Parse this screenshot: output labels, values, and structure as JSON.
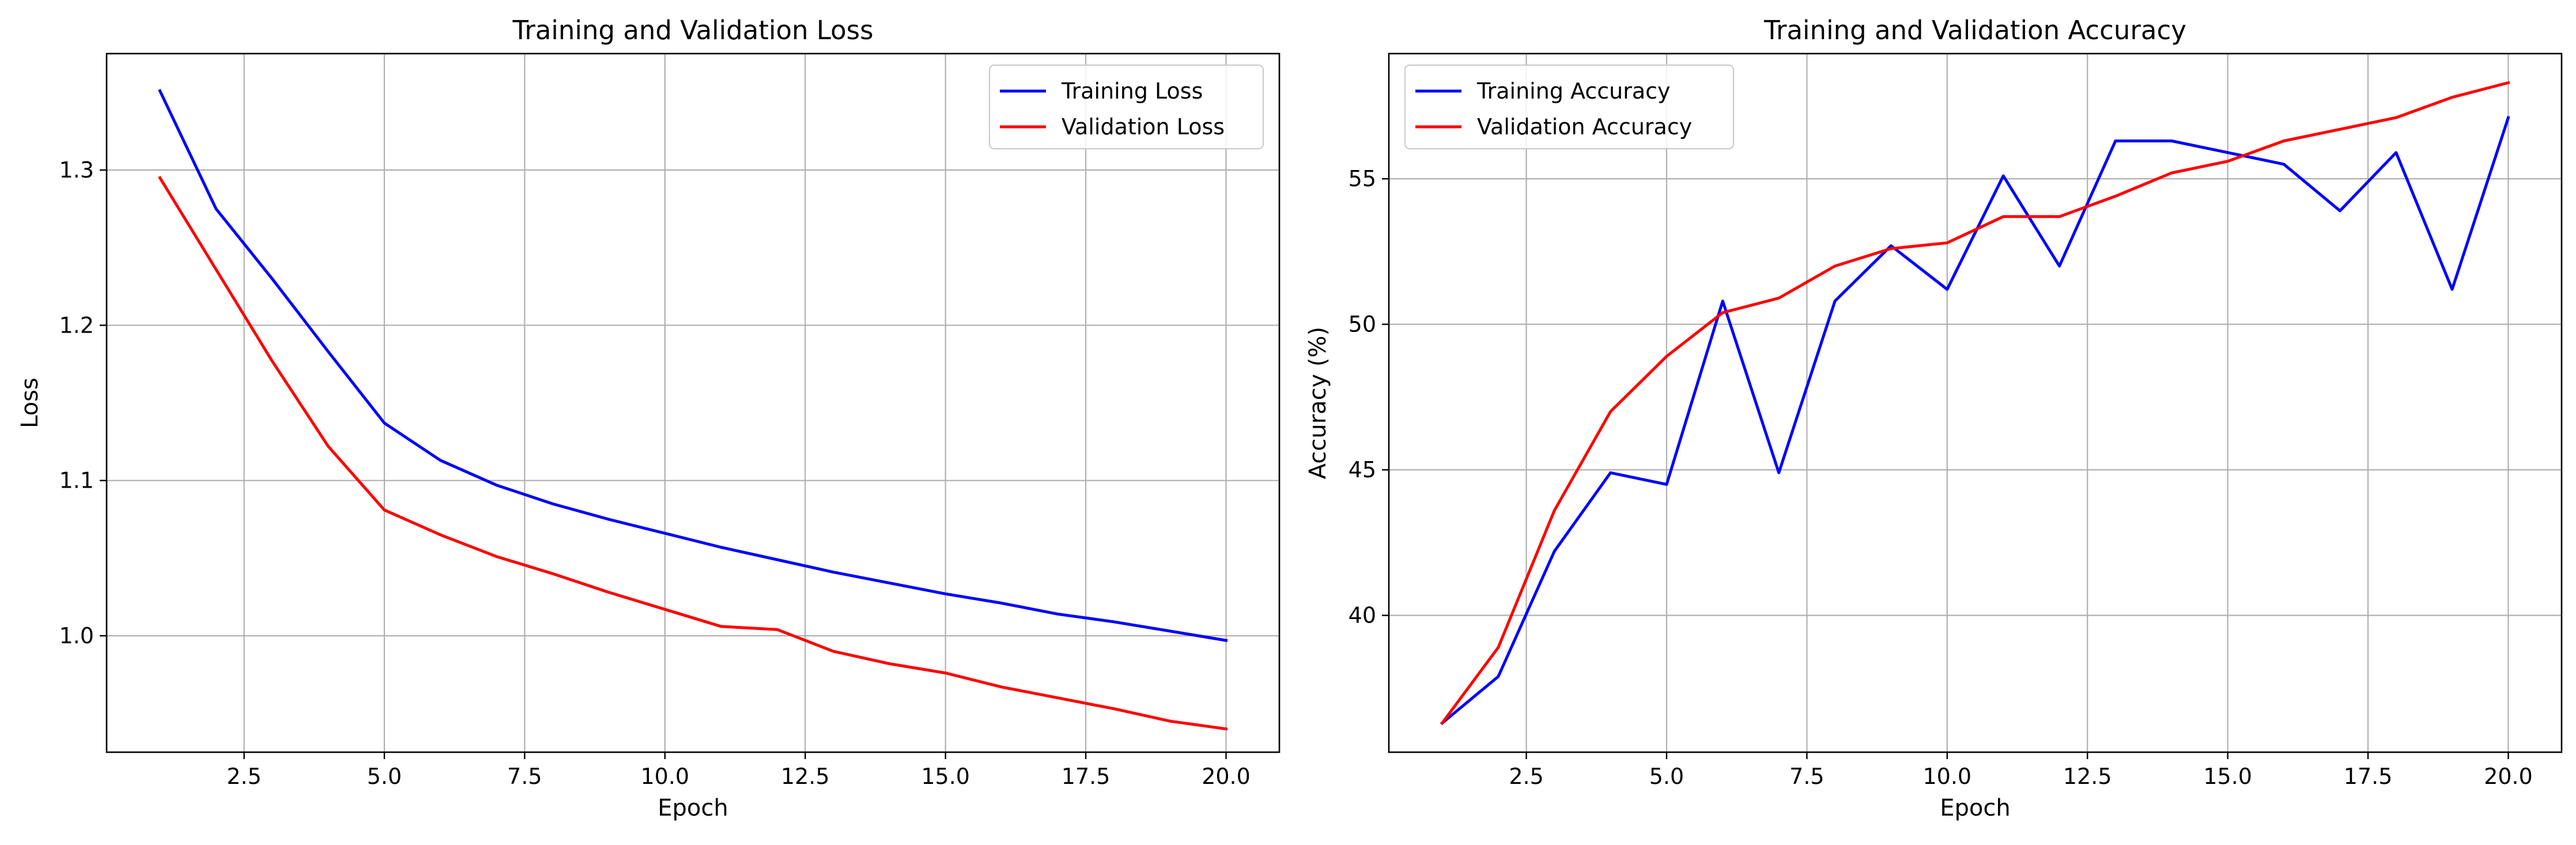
{
  "chart_data": [
    {
      "type": "line",
      "title": "Training and Validation Loss",
      "xlabel": "Epoch",
      "ylabel": "Loss",
      "xlim": [
        0.05,
        20.95
      ],
      "ylim": [
        0.925,
        1.375
      ],
      "xticks": [
        2.5,
        5.0,
        7.5,
        10.0,
        12.5,
        15.0,
        17.5,
        20.0
      ],
      "xtick_labels": [
        "2.5",
        "5.0",
        "7.5",
        "10.0",
        "12.5",
        "15.0",
        "17.5",
        "20.0"
      ],
      "yticks": [
        1.0,
        1.1,
        1.2,
        1.3
      ],
      "ytick_labels": [
        "1.0",
        "1.1",
        "1.2",
        "1.3"
      ],
      "grid": true,
      "legend_position": "top-right",
      "x": [
        1,
        2,
        3,
        4,
        5,
        6,
        7,
        8,
        9,
        10,
        11,
        12,
        13,
        14,
        15,
        16,
        17,
        18,
        19,
        20
      ],
      "series": [
        {
          "name": "Training Loss",
          "color": "#0000ff",
          "values": [
            1.351,
            1.275,
            1.23,
            1.183,
            1.137,
            1.113,
            1.097,
            1.085,
            1.075,
            1.066,
            1.057,
            1.049,
            1.041,
            1.034,
            1.027,
            1.021,
            1.014,
            1.009,
            1.003,
            0.997
          ]
        },
        {
          "name": "Validation Loss",
          "color": "#ff0000",
          "values": [
            1.295,
            1.236,
            1.177,
            1.122,
            1.081,
            1.065,
            1.051,
            1.04,
            1.028,
            1.017,
            1.006,
            1.004,
            0.99,
            0.982,
            0.976,
            0.967,
            0.96,
            0.953,
            0.945,
            0.94
          ]
        }
      ]
    },
    {
      "type": "line",
      "title": "Training and Validation Accuracy",
      "xlabel": "Epoch",
      "ylabel": "Accuracy (%)",
      "xlim": [
        0.05,
        20.95
      ],
      "ylim": [
        35.3,
        59.3
      ],
      "xticks": [
        2.5,
        5.0,
        7.5,
        10.0,
        12.5,
        15.0,
        17.5,
        20.0
      ],
      "xtick_labels": [
        "2.5",
        "5.0",
        "7.5",
        "10.0",
        "12.5",
        "15.0",
        "17.5",
        "20.0"
      ],
      "yticks": [
        40,
        45,
        50,
        55
      ],
      "ytick_labels": [
        "40",
        "45",
        "50",
        "55"
      ],
      "grid": true,
      "legend_position": "top-left",
      "x": [
        1,
        2,
        3,
        4,
        5,
        6,
        7,
        8,
        9,
        10,
        11,
        12,
        13,
        14,
        15,
        16,
        17,
        18,
        19,
        20
      ],
      "series": [
        {
          "name": "Training Accuracy",
          "color": "#0000ff",
          "values": [
            36.3,
            37.9,
            42.2,
            44.9,
            44.5,
            50.8,
            44.9,
            50.8,
            52.7,
            51.2,
            55.1,
            52.0,
            56.3,
            56.3,
            55.9,
            55.5,
            53.9,
            55.9,
            51.2,
            57.1
          ]
        },
        {
          "name": "Validation Accuracy",
          "color": "#ff0000",
          "values": [
            36.3,
            38.9,
            43.6,
            47.0,
            48.9,
            50.4,
            50.9,
            52.0,
            52.6,
            52.8,
            53.7,
            53.7,
            54.4,
            55.2,
            55.6,
            56.3,
            56.7,
            57.1,
            57.8,
            58.3
          ]
        }
      ]
    }
  ]
}
